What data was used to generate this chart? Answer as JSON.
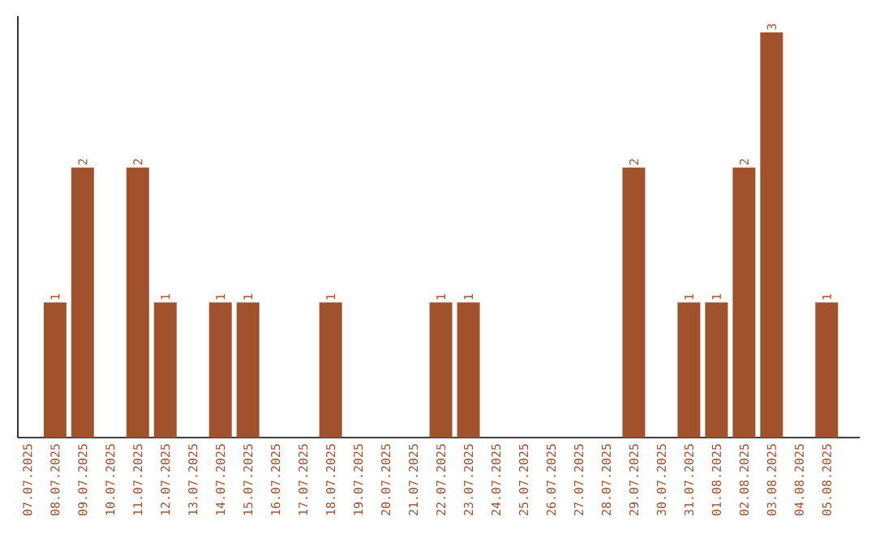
{
  "chart_data": {
    "type": "bar",
    "categories": [
      "07.07.2025",
      "08.07.2025",
      "09.07.2025",
      "10.07.2025",
      "11.07.2025",
      "12.07.2025",
      "13.07.2025",
      "14.07.2025",
      "15.07.2025",
      "16.07.2025",
      "17.07.2025",
      "18.07.2025",
      "19.07.2025",
      "20.07.2025",
      "21.07.2025",
      "22.07.2025",
      "23.07.2025",
      "24.07.2025",
      "25.07.2025",
      "26.07.2025",
      "27.07.2025",
      "28.07.2025",
      "29.07.2025",
      "30.07.2025",
      "31.07.2025",
      "01.08.2025",
      "02.08.2025",
      "03.08.2025",
      "04.08.2025",
      "05.08.2025"
    ],
    "values": [
      0,
      1,
      2,
      0,
      2,
      1,
      0,
      1,
      1,
      0,
      0,
      1,
      0,
      0,
      0,
      1,
      1,
      0,
      0,
      0,
      0,
      0,
      2,
      0,
      1,
      1,
      2,
      3,
      0,
      1
    ],
    "value_labels": [
      null,
      "1",
      "2",
      null,
      "2",
      "1",
      null,
      "1",
      "1",
      null,
      null,
      "1",
      null,
      null,
      null,
      "1",
      "1",
      null,
      null,
      null,
      null,
      null,
      "2",
      null,
      "1",
      "1",
      "2",
      "3",
      null,
      "1"
    ],
    "color": "#a0522d",
    "tick_labels": "x",
    "grid": false
  }
}
